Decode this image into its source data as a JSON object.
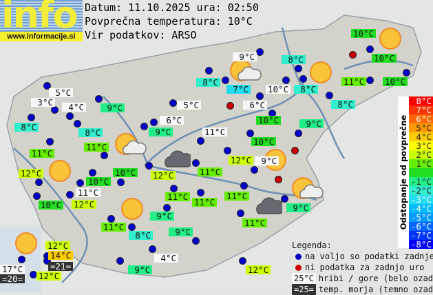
{
  "logo": {
    "word": "info",
    "url": "www.informacije.si"
  },
  "header": {
    "date_line": "Datum: 11.10.2025 ura: 02:50",
    "avg_line": "Povprečna temperatura: 10°C",
    "source_line": "Vir podatkov: ARSO"
  },
  "average_temperature": 10,
  "stations": [
    {
      "t": "10°C",
      "k": "n"
    },
    {
      "t": "10°C",
      "k": "n"
    },
    {
      "t": "9°C",
      "k": "m"
    },
    {
      "t": "8°C",
      "k": "n"
    },
    {
      "t": "8°C",
      "k": "n"
    },
    {
      "t": "7°C",
      "k": "n"
    },
    {
      "t": "10°C",
      "k": "m"
    },
    {
      "t": "8°C",
      "k": "n"
    },
    {
      "t": "11°C",
      "k": "n"
    },
    {
      "t": "10°C",
      "k": "n"
    },
    {
      "t": "8°C",
      "k": "n"
    },
    {
      "t": "5°C",
      "k": "m"
    },
    {
      "t": "3°C",
      "k": "m"
    },
    {
      "t": "4°C",
      "k": "m"
    },
    {
      "t": "9°C",
      "k": "n"
    },
    {
      "t": "5°C",
      "k": "m"
    },
    {
      "t": "6°C",
      "k": "m"
    },
    {
      "t": "8°C",
      "k": "n"
    },
    {
      "t": "6°C",
      "k": "m"
    },
    {
      "t": "10°C",
      "k": "n"
    },
    {
      "t": "9°C",
      "k": "n"
    },
    {
      "t": "8°C",
      "k": "n"
    },
    {
      "t": "9°C",
      "k": "n"
    },
    {
      "t": "11°C",
      "k": "m"
    },
    {
      "t": "10°C",
      "k": "n"
    },
    {
      "t": "11°C",
      "k": "n"
    },
    {
      "t": "11°C",
      "k": "n"
    },
    {
      "t": "12°C",
      "k": "n"
    },
    {
      "t": "9°C",
      "k": "m"
    },
    {
      "t": "12°C",
      "k": "n"
    },
    {
      "t": "10°C",
      "k": "n"
    },
    {
      "t": "12°C",
      "k": "n"
    },
    {
      "t": "11°C",
      "k": "n"
    },
    {
      "t": "10°C",
      "k": "n"
    },
    {
      "t": "11°C",
      "k": "m"
    },
    {
      "t": "10°C",
      "k": "n"
    },
    {
      "t": "12°C",
      "k": "n"
    },
    {
      "t": "11°C",
      "k": "n"
    },
    {
      "t": "11°C",
      "k": "n"
    },
    {
      "t": "11°C",
      "k": "n"
    },
    {
      "t": "9°C",
      "k": "n"
    },
    {
      "t": "9°C",
      "k": "n"
    },
    {
      "t": "11°C",
      "k": "n"
    },
    {
      "t": "11°C",
      "k": "n"
    },
    {
      "t": "8°C",
      "k": "n"
    },
    {
      "t": "9°C",
      "k": "n"
    },
    {
      "t": "4°C",
      "k": "m"
    },
    {
      "t": "9°C",
      "k": "n"
    },
    {
      "t": "12°C",
      "k": "n"
    },
    {
      "t": "12°C",
      "k": "n"
    },
    {
      "t": "14°C",
      "k": "n"
    },
    {
      "t": "=21=",
      "k": "s"
    },
    {
      "t": "17°C",
      "k": "m"
    },
    {
      "t": "=20=",
      "k": "s"
    },
    {
      "t": "12°C",
      "k": "n"
    }
  ],
  "weather_icons": [
    "sun",
    "sun-cloud",
    "sun",
    "sun-cloud",
    "dark-cloud",
    "sun",
    "sun",
    "sun-cloud",
    "dark-cloud",
    "sun",
    "sun"
  ],
  "scale": {
    "title": "Odstopanje od povprečne temperature:",
    "steps": [
      {
        "label": "8°C",
        "color": "#ff0000"
      },
      {
        "label": "7°C",
        "color": "#ff3300"
      },
      {
        "label": "6°C",
        "color": "#ff6600"
      },
      {
        "label": "5°C",
        "color": "#ff9900"
      },
      {
        "label": "4°C",
        "color": "#ffcc00"
      },
      {
        "label": "3°C",
        "color": "#ffff00"
      },
      {
        "label": "2°C",
        "color": "#ccff00"
      },
      {
        "label": "1°C",
        "color": "#66ee00"
      },
      {
        "label": "",
        "color": "#22dd22"
      },
      {
        "label": "-1°C",
        "color": "#22ee88"
      },
      {
        "label": "-2°C",
        "color": "#33eecc"
      },
      {
        "label": "-3°C",
        "color": "#22ddee"
      },
      {
        "label": "-4°C",
        "color": "#00bbff"
      },
      {
        "label": "-5°C",
        "color": "#0099ff"
      },
      {
        "label": "-6°C",
        "color": "#0066ff"
      },
      {
        "label": "-7°C",
        "color": "#0033ff"
      },
      {
        "label": "-8°C",
        "color": "#0000ff"
      }
    ]
  },
  "legend": {
    "title": "Legenda:",
    "available": "na voljo so podatki zadnje ure",
    "missing": "ni podatka za zadnjo uro",
    "mountain_sample": "25°C",
    "mountain_text": "hribi / gore (belo ozadje)",
    "sea_sample": "=25=",
    "sea_text": "temp. morja (temno ozadje)",
    "available_color": "#0000cc",
    "missing_color": "#cc0000"
  }
}
